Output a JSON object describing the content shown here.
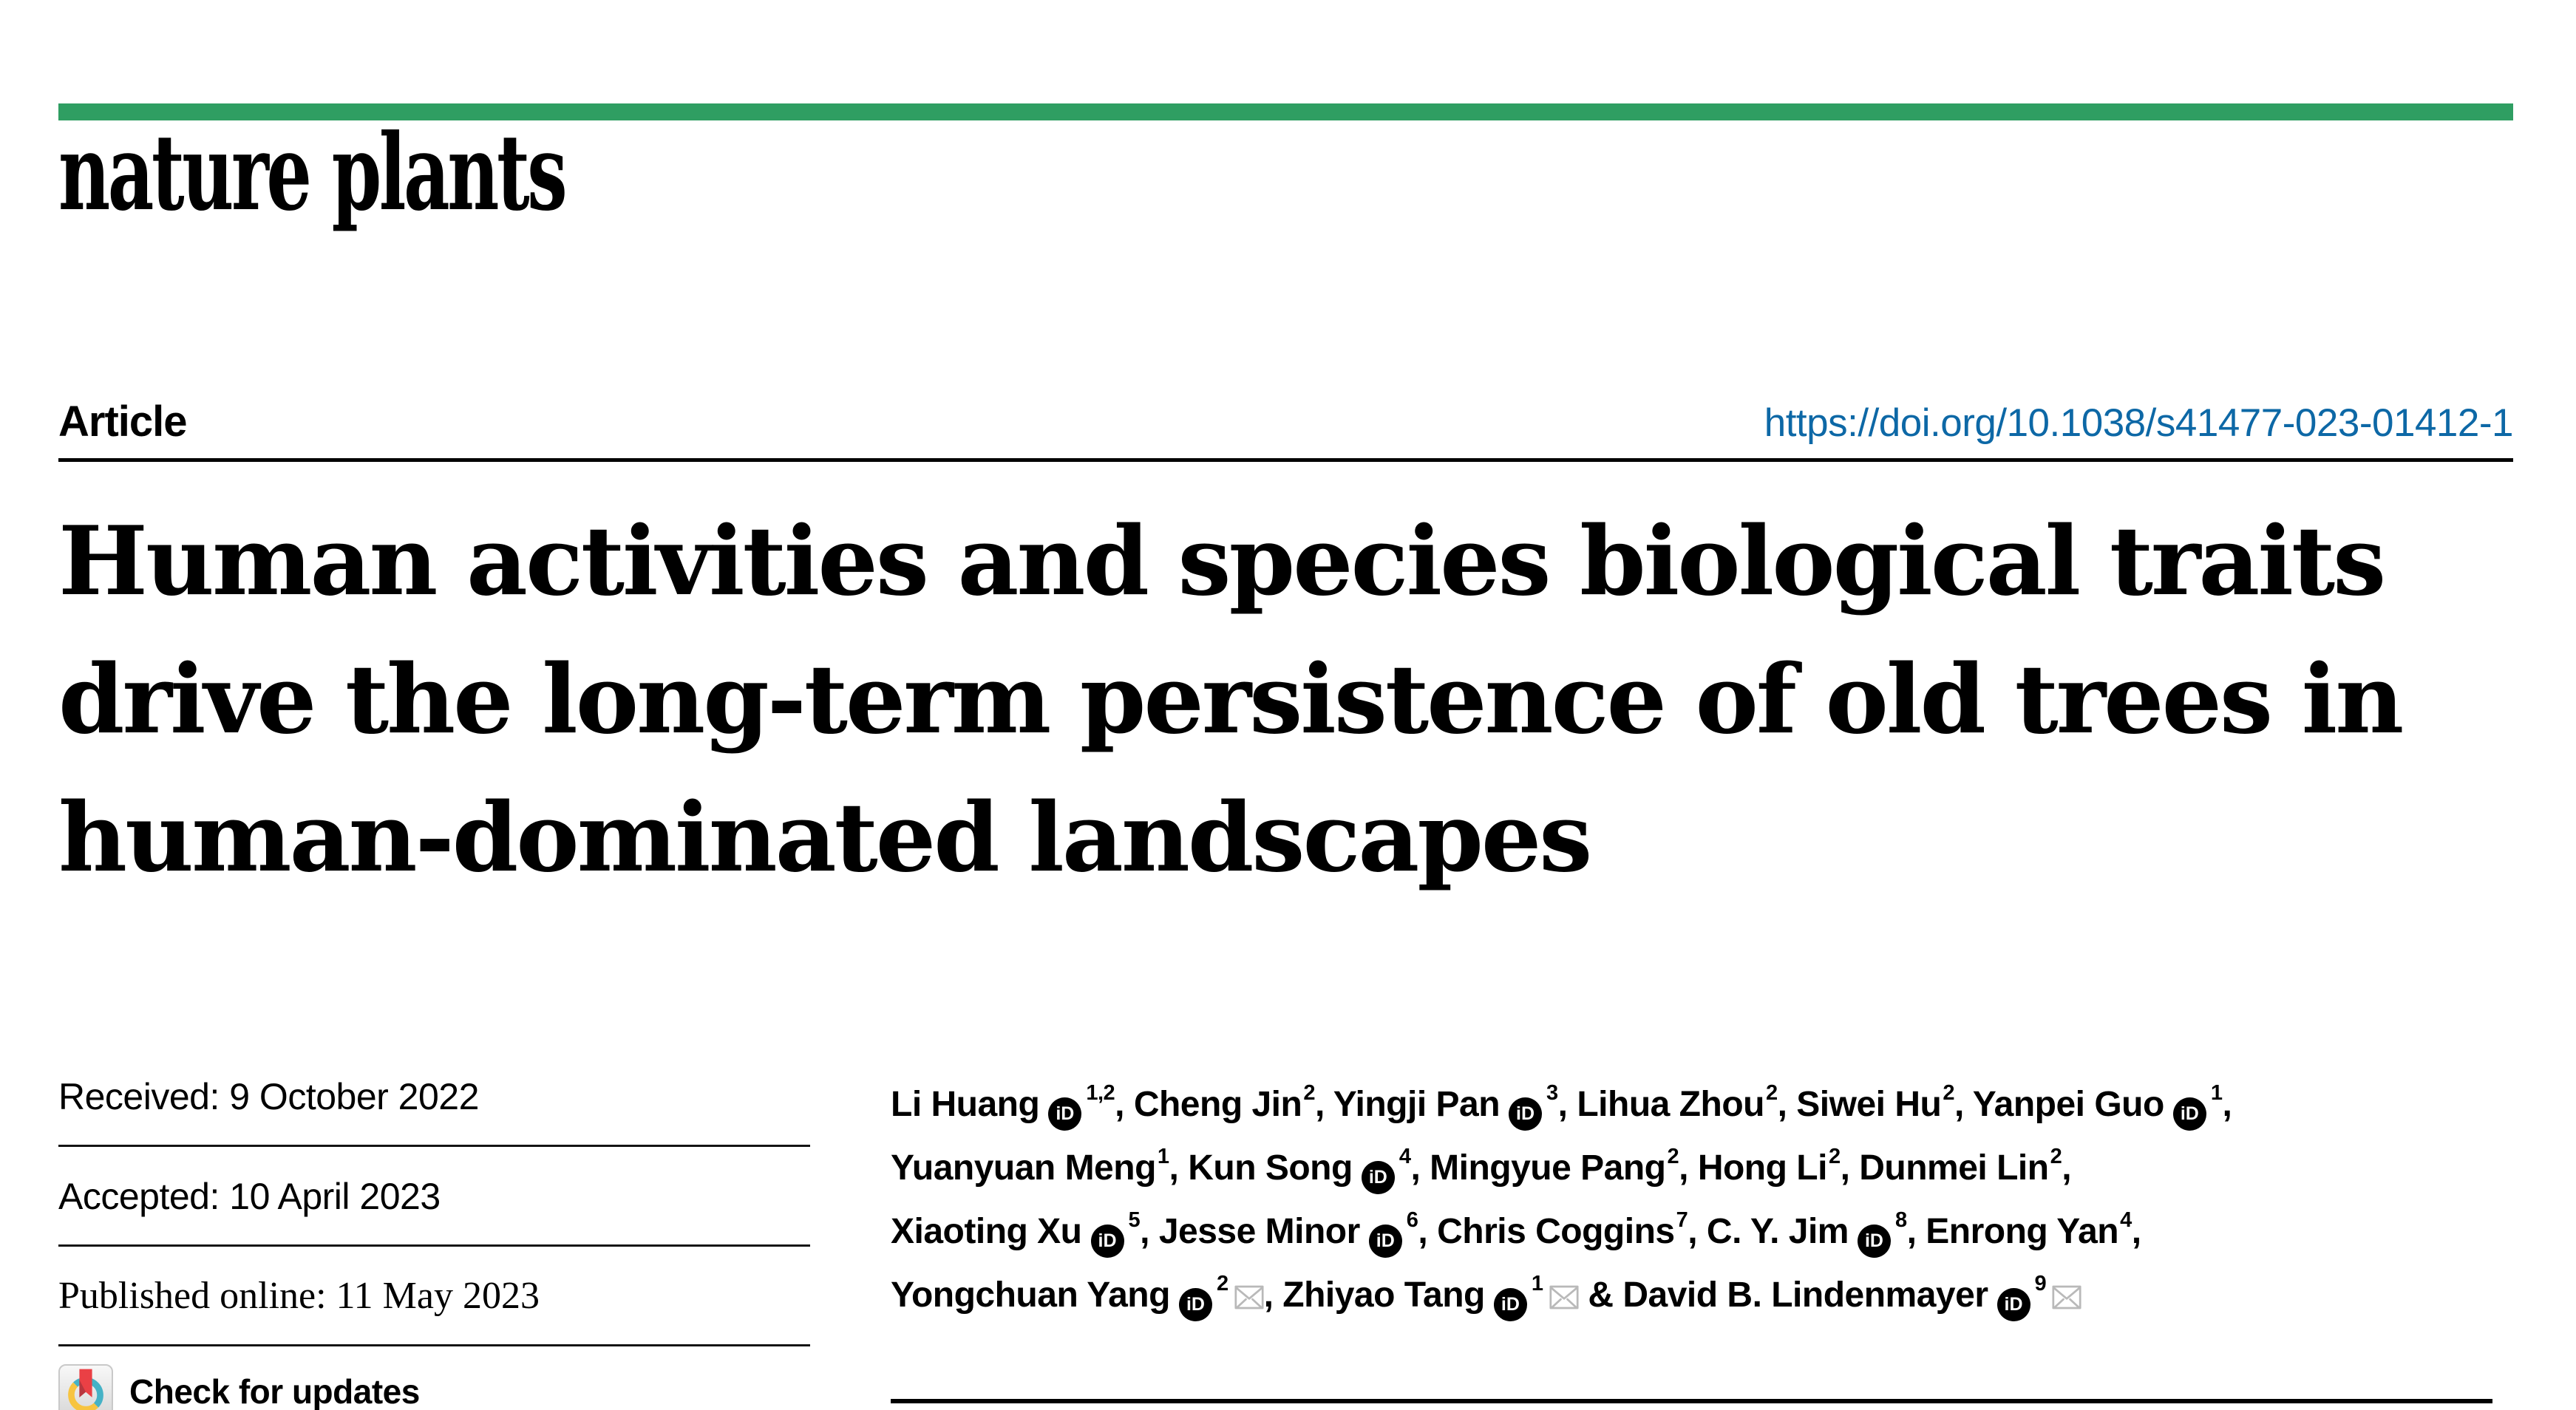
{
  "journal": {
    "logo": "nature plants"
  },
  "masthead": {
    "article_label": "Article",
    "doi": "https://doi.org/10.1038/s41477-023-01412-1"
  },
  "title_lines": [
    "Human activities and species biological traits",
    "drive the long-term persistence of old trees in",
    "human-dominated landscapes"
  ],
  "history": {
    "received": "Received: 9 October 2022",
    "accepted": "Accepted: 10 April 2023",
    "published": "Published online: 11 May 2023",
    "check_updates": "Check for updates"
  },
  "icons": {
    "orcid_label": "iD"
  },
  "colors": {
    "brand_green": "#2f9e62",
    "link_blue": "#0d68a6",
    "rule_dark": "#141414",
    "mail_gray": "#b9b9b9",
    "orcid_black": "#000000",
    "crossmark_teal": "#45b2c6",
    "crossmark_yellow": "#f7c440",
    "crossmark_red": "#ea4045",
    "crossmark_red_dark": "#b7363e"
  },
  "authors": {
    "lines": [
      [
        {
          "t": "text",
          "v": "Li Huang"
        },
        {
          "t": "orcid"
        },
        {
          "t": "sup",
          "v": "1,2"
        },
        {
          "t": "text",
          "v": ", Cheng Jin"
        },
        {
          "t": "sup",
          "v": "2"
        },
        {
          "t": "text",
          "v": ", Yingji Pan"
        },
        {
          "t": "orcid"
        },
        {
          "t": "sup",
          "v": "3"
        },
        {
          "t": "text",
          "v": ", Lihua Zhou"
        },
        {
          "t": "sup",
          "v": "2"
        },
        {
          "t": "text",
          "v": ", Siwei Hu"
        },
        {
          "t": "sup",
          "v": "2"
        },
        {
          "t": "text",
          "v": ", Yanpei Guo"
        },
        {
          "t": "orcid"
        },
        {
          "t": "sup",
          "v": "1"
        },
        {
          "t": "text",
          "v": ","
        }
      ],
      [
        {
          "t": "text",
          "v": "Yuanyuan Meng"
        },
        {
          "t": "sup",
          "v": "1"
        },
        {
          "t": "text",
          "v": ", Kun Song"
        },
        {
          "t": "orcid"
        },
        {
          "t": "sup",
          "v": "4"
        },
        {
          "t": "text",
          "v": ", Mingyue Pang"
        },
        {
          "t": "sup",
          "v": "2"
        },
        {
          "t": "text",
          "v": ", Hong Li"
        },
        {
          "t": "sup",
          "v": "2"
        },
        {
          "t": "text",
          "v": ", Dunmei Lin"
        },
        {
          "t": "sup",
          "v": "2"
        },
        {
          "t": "text",
          "v": ","
        }
      ],
      [
        {
          "t": "text",
          "v": "Xiaoting Xu"
        },
        {
          "t": "orcid"
        },
        {
          "t": "sup",
          "v": "5"
        },
        {
          "t": "text",
          "v": ", Jesse Minor"
        },
        {
          "t": "orcid"
        },
        {
          "t": "sup",
          "v": "6"
        },
        {
          "t": "text",
          "v": ", Chris Coggins"
        },
        {
          "t": "sup",
          "v": "7"
        },
        {
          "t": "text",
          "v": ", C. Y. Jim"
        },
        {
          "t": "orcid"
        },
        {
          "t": "sup",
          "v": "8"
        },
        {
          "t": "text",
          "v": ", Enrong Yan"
        },
        {
          "t": "sup",
          "v": "4"
        },
        {
          "t": "text",
          "v": ","
        }
      ],
      [
        {
          "t": "text",
          "v": "Yongchuan Yang"
        },
        {
          "t": "orcid"
        },
        {
          "t": "sup",
          "v": "2"
        },
        {
          "t": "mail"
        },
        {
          "t": "text",
          "v": ", Zhiyao Tang"
        },
        {
          "t": "orcid"
        },
        {
          "t": "sup",
          "v": "1"
        },
        {
          "t": "mail"
        },
        {
          "t": "text",
          "v": " & David B. Lindenmayer"
        },
        {
          "t": "orcid"
        },
        {
          "t": "sup",
          "v": "9"
        },
        {
          "t": "mail"
        }
      ]
    ]
  }
}
